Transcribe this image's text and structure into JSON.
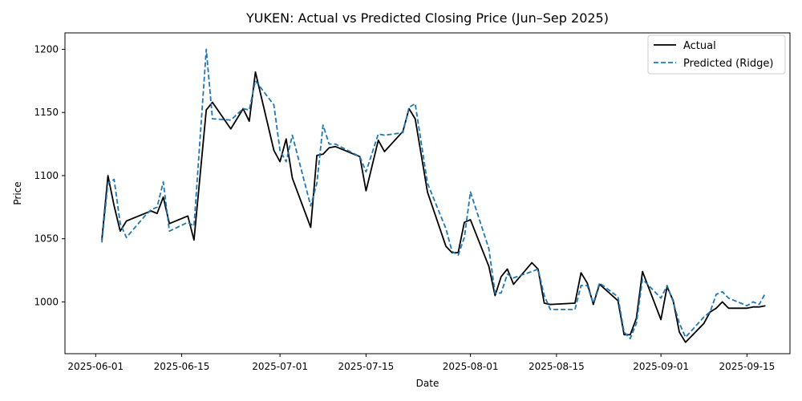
{
  "chart_data": {
    "type": "line",
    "title": "YUKEN: Actual vs Predicted Closing Price (Jun–Sep 2025)",
    "xlabel": "Date",
    "ylabel": "Price",
    "xlim": [
      "2025-05-27",
      "2025-09-22"
    ],
    "ylim": [
      959,
      1213
    ],
    "x_ticks": [
      "2025-06-01",
      "2025-06-15",
      "2025-07-01",
      "2025-07-15",
      "2025-08-01",
      "2025-08-15",
      "2025-09-01",
      "2025-09-15"
    ],
    "y_ticks": [
      1000,
      1050,
      1100,
      1150,
      1200
    ],
    "legend_position": "upper right",
    "series": [
      {
        "name": "Actual",
        "color": "#000000",
        "style": "solid",
        "points": [
          [
            "2025-06-02",
            1049
          ],
          [
            "2025-06-03",
            1100
          ],
          [
            "2025-06-04",
            1076
          ],
          [
            "2025-06-05",
            1056
          ],
          [
            "2025-06-06",
            1064
          ],
          [
            "2025-06-09",
            1070
          ],
          [
            "2025-06-10",
            1072
          ],
          [
            "2025-06-11",
            1070
          ],
          [
            "2025-06-12",
            1083
          ],
          [
            "2025-06-13",
            1062
          ],
          [
            "2025-06-16",
            1068
          ],
          [
            "2025-06-17",
            1049
          ],
          [
            "2025-06-19",
            1152
          ],
          [
            "2025-06-20",
            1158
          ],
          [
            "2025-06-23",
            1137
          ],
          [
            "2025-06-25",
            1153
          ],
          [
            "2025-06-26",
            1143
          ],
          [
            "2025-06-27",
            1182
          ],
          [
            "2025-06-30",
            1120
          ],
          [
            "2025-07-01",
            1111
          ],
          [
            "2025-07-02",
            1129
          ],
          [
            "2025-07-03",
            1098
          ],
          [
            "2025-07-06",
            1059
          ],
          [
            "2025-07-07",
            1116
          ],
          [
            "2025-07-08",
            1117
          ],
          [
            "2025-07-09",
            1122
          ],
          [
            "2025-07-10",
            1123
          ],
          [
            "2025-07-14",
            1115
          ],
          [
            "2025-07-15",
            1088
          ],
          [
            "2025-07-17",
            1128
          ],
          [
            "2025-07-18",
            1119
          ],
          [
            "2025-07-21",
            1135
          ],
          [
            "2025-07-22",
            1153
          ],
          [
            "2025-07-23",
            1145
          ],
          [
            "2025-07-25",
            1087
          ],
          [
            "2025-07-28",
            1044
          ],
          [
            "2025-07-29",
            1039
          ],
          [
            "2025-07-30",
            1039
          ],
          [
            "2025-07-31",
            1063
          ],
          [
            "2025-08-01",
            1065
          ],
          [
            "2025-08-04",
            1028
          ],
          [
            "2025-08-05",
            1005
          ],
          [
            "2025-08-06",
            1020
          ],
          [
            "2025-08-07",
            1026
          ],
          [
            "2025-08-08",
            1014
          ],
          [
            "2025-08-11",
            1031
          ],
          [
            "2025-08-12",
            1026
          ],
          [
            "2025-08-13",
            999
          ],
          [
            "2025-08-14",
            998
          ],
          [
            "2025-08-18",
            999
          ],
          [
            "2025-08-19",
            1023
          ],
          [
            "2025-08-20",
            1015
          ],
          [
            "2025-08-21",
            998
          ],
          [
            "2025-08-22",
            1014
          ],
          [
            "2025-08-25",
            1001
          ],
          [
            "2025-08-26",
            974
          ],
          [
            "2025-08-27",
            974
          ],
          [
            "2025-08-28",
            987
          ],
          [
            "2025-08-29",
            1024
          ],
          [
            "2025-09-01",
            986
          ],
          [
            "2025-09-02",
            1012
          ],
          [
            "2025-09-03",
            1001
          ],
          [
            "2025-09-04",
            976
          ],
          [
            "2025-09-05",
            968
          ],
          [
            "2025-09-08",
            983
          ],
          [
            "2025-09-09",
            992
          ],
          [
            "2025-09-10",
            995
          ],
          [
            "2025-09-11",
            1000
          ],
          [
            "2025-09-12",
            995
          ],
          [
            "2025-09-15",
            995
          ],
          [
            "2025-09-16",
            996
          ],
          [
            "2025-09-17",
            996
          ],
          [
            "2025-09-18",
            997
          ]
        ]
      },
      {
        "name": "Predicted (Ridge)",
        "color": "#1f77b4",
        "style": "dashed",
        "points": [
          [
            "2025-06-02",
            1047
          ],
          [
            "2025-06-03",
            1094
          ],
          [
            "2025-06-04",
            1097
          ],
          [
            "2025-06-05",
            1062
          ],
          [
            "2025-06-06",
            1051
          ],
          [
            "2025-06-09",
            1068
          ],
          [
            "2025-06-10",
            1073
          ],
          [
            "2025-06-11",
            1075
          ],
          [
            "2025-06-12",
            1095
          ],
          [
            "2025-06-13",
            1056
          ],
          [
            "2025-06-16",
            1063
          ],
          [
            "2025-06-17",
            1060
          ],
          [
            "2025-06-19",
            1200
          ],
          [
            "2025-06-20",
            1145
          ],
          [
            "2025-06-23",
            1144
          ],
          [
            "2025-06-25",
            1153
          ],
          [
            "2025-06-26",
            1152
          ],
          [
            "2025-06-27",
            1175
          ],
          [
            "2025-06-30",
            1156
          ],
          [
            "2025-07-01",
            1120
          ],
          [
            "2025-07-02",
            1111
          ],
          [
            "2025-07-03",
            1132
          ],
          [
            "2025-07-06",
            1076
          ],
          [
            "2025-07-07",
            1094
          ],
          [
            "2025-07-08",
            1140
          ],
          [
            "2025-07-09",
            1125
          ],
          [
            "2025-07-10",
            1125
          ],
          [
            "2025-07-14",
            1115
          ],
          [
            "2025-07-15",
            1103
          ],
          [
            "2025-07-17",
            1133
          ],
          [
            "2025-07-18",
            1132
          ],
          [
            "2025-07-21",
            1134
          ],
          [
            "2025-07-22",
            1154
          ],
          [
            "2025-07-23",
            1157
          ],
          [
            "2025-07-25",
            1094
          ],
          [
            "2025-07-28",
            1058
          ],
          [
            "2025-07-29",
            1040
          ],
          [
            "2025-07-30",
            1037
          ],
          [
            "2025-07-31",
            1051
          ],
          [
            "2025-08-01",
            1087
          ],
          [
            "2025-08-04",
            1042
          ],
          [
            "2025-08-05",
            1007
          ],
          [
            "2025-08-06",
            1007
          ],
          [
            "2025-08-07",
            1022
          ],
          [
            "2025-08-08",
            1019
          ],
          [
            "2025-08-11",
            1024
          ],
          [
            "2025-08-12",
            1026
          ],
          [
            "2025-08-13",
            1005
          ],
          [
            "2025-08-14",
            994
          ],
          [
            "2025-08-18",
            994
          ],
          [
            "2025-08-19",
            1013
          ],
          [
            "2025-08-20",
            1013
          ],
          [
            "2025-08-21",
            999
          ],
          [
            "2025-08-22",
            1015
          ],
          [
            "2025-08-25",
            1004
          ],
          [
            "2025-08-26",
            976
          ],
          [
            "2025-08-27",
            971
          ],
          [
            "2025-08-28",
            983
          ],
          [
            "2025-08-29",
            1018
          ],
          [
            "2025-09-01",
            1003
          ],
          [
            "2025-09-02",
            1013
          ],
          [
            "2025-09-03",
            1000
          ],
          [
            "2025-09-04",
            983
          ],
          [
            "2025-09-05",
            972
          ],
          [
            "2025-09-08",
            988
          ],
          [
            "2025-09-09",
            992
          ],
          [
            "2025-09-10",
            1006
          ],
          [
            "2025-09-11",
            1008
          ],
          [
            "2025-09-12",
            1003
          ],
          [
            "2025-09-15",
            997
          ],
          [
            "2025-09-16",
            1000
          ],
          [
            "2025-09-17",
            998
          ],
          [
            "2025-09-18",
            1007
          ]
        ]
      }
    ]
  }
}
